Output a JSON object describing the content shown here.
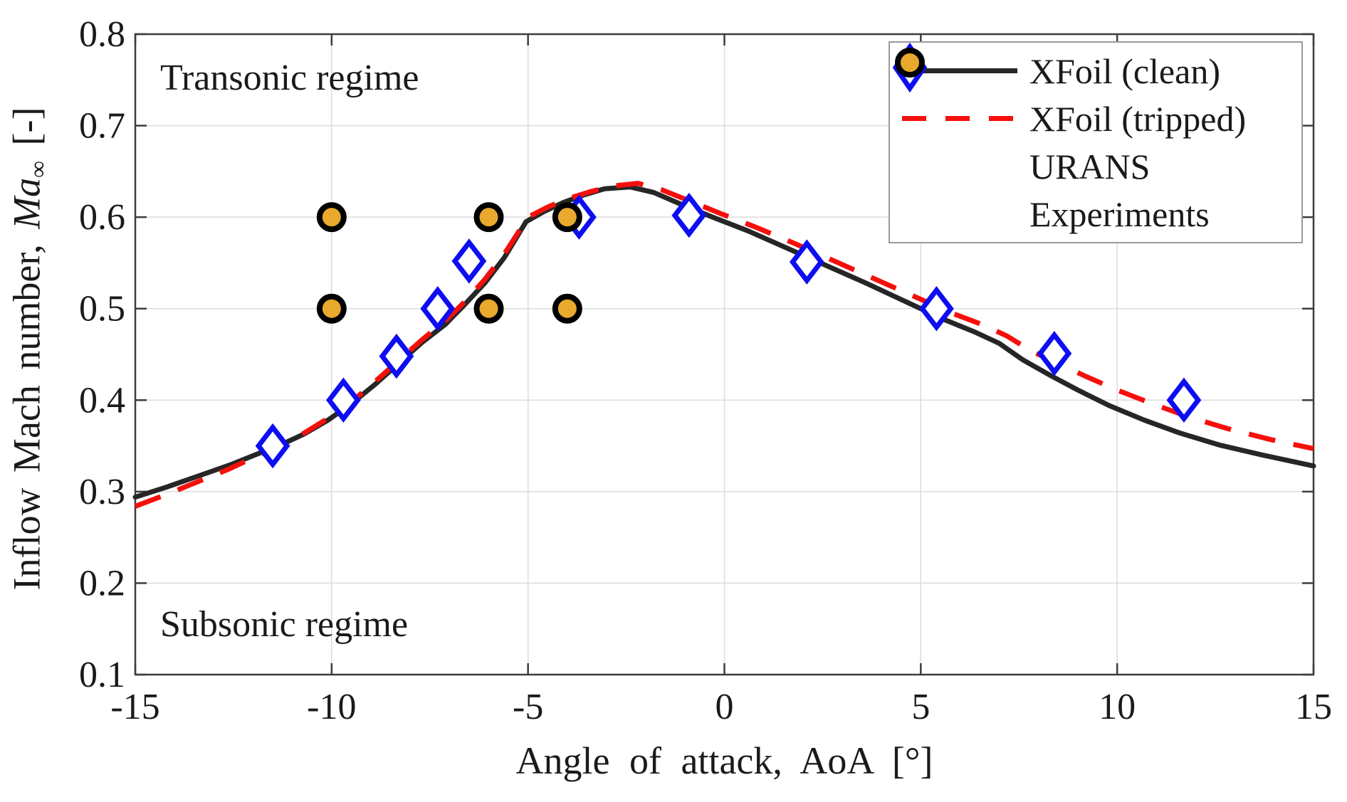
{
  "chart_data": {
    "type": "line",
    "title": "",
    "xlabel": "Angle of attack, AoA [°]",
    "ylabel": "Inflow Mach number, Ma∞ [-]",
    "ylabel_parts": {
      "prefix": "Inflow Mach number, ",
      "symbol": "Ma",
      "subscript": "∞",
      "suffix": " [-]"
    },
    "xlim": [
      -15,
      15
    ],
    "ylim": [
      0.1,
      0.8
    ],
    "xticks": [
      -15,
      -10,
      -5,
      0,
      5,
      10,
      15
    ],
    "yticks": [
      0.1,
      0.2,
      0.3,
      0.4,
      0.5,
      0.6,
      0.7,
      0.8
    ],
    "grid": true,
    "legend_position": "top-right",
    "colors": {
      "axis": "#3d3d3d",
      "grid": "#dcdcdc",
      "text": "#1a1a1a",
      "clean_line": "#262626",
      "tripped_line": "#f50f0b",
      "urans_marker": "#0d0df2",
      "experiments_fill": "#e9a92d",
      "experiments_edge": "#000000"
    },
    "annotations": [
      {
        "text": "Transonic regime",
        "x": -14.4,
        "y": 0.75
      },
      {
        "text": "Subsonic regime",
        "x": -14.4,
        "y": 0.155
      }
    ],
    "series": [
      {
        "name": "XFoil (clean)",
        "type": "line",
        "style": "solid",
        "color": "#262626",
        "width": 7,
        "points": [
          [
            -15,
            0.294
          ],
          [
            -14.2,
            0.305
          ],
          [
            -13.4,
            0.317
          ],
          [
            -12.6,
            0.329
          ],
          [
            -11.9,
            0.341
          ],
          [
            -11.3,
            0.351
          ],
          [
            -10.7,
            0.363
          ],
          [
            -10.1,
            0.378
          ],
          [
            -9.5,
            0.396
          ],
          [
            -8.9,
            0.417
          ],
          [
            -8.3,
            0.44
          ],
          [
            -7.7,
            0.463
          ],
          [
            -7.1,
            0.483
          ],
          [
            -6.6,
            0.505
          ],
          [
            -6.1,
            0.528
          ],
          [
            -5.6,
            0.556
          ],
          [
            -5.05,
            0.595
          ],
          [
            -4.6,
            0.606
          ],
          [
            -4.1,
            0.616
          ],
          [
            -3.6,
            0.624
          ],
          [
            -3.05,
            0.631
          ],
          [
            -2.4,
            0.633
          ],
          [
            -1.8,
            0.627
          ],
          [
            -1.1,
            0.614
          ],
          [
            -0.3,
            0.6
          ],
          [
            0.6,
            0.585
          ],
          [
            1.6,
            0.566
          ],
          [
            2.6,
            0.547
          ],
          [
            3.6,
            0.528
          ],
          [
            4.6,
            0.508
          ],
          [
            5.6,
            0.488
          ],
          [
            6.4,
            0.474
          ],
          [
            7.0,
            0.462
          ],
          [
            7.6,
            0.444
          ],
          [
            8.3,
            0.427
          ],
          [
            9.0,
            0.411
          ],
          [
            9.8,
            0.394
          ],
          [
            10.7,
            0.378
          ],
          [
            11.6,
            0.364
          ],
          [
            12.6,
            0.351
          ],
          [
            13.7,
            0.34
          ],
          [
            15,
            0.328
          ]
        ]
      },
      {
        "name": "XFoil (tripped)",
        "type": "line",
        "style": "dashed",
        "color": "#f50f0b",
        "width": 7,
        "points": [
          [
            -15,
            0.284
          ],
          [
            -14.2,
            0.297
          ],
          [
            -13.4,
            0.311
          ],
          [
            -12.6,
            0.325
          ],
          [
            -11.9,
            0.339
          ],
          [
            -11.3,
            0.35
          ],
          [
            -10.7,
            0.364
          ],
          [
            -10.1,
            0.38
          ],
          [
            -9.5,
            0.398
          ],
          [
            -8.9,
            0.42
          ],
          [
            -8.3,
            0.443
          ],
          [
            -7.7,
            0.466
          ],
          [
            -7.1,
            0.487
          ],
          [
            -6.6,
            0.508
          ],
          [
            -6.1,
            0.532
          ],
          [
            -5.6,
            0.56
          ],
          [
            -5.0,
            0.6
          ],
          [
            -4.5,
            0.611
          ],
          [
            -4.0,
            0.62
          ],
          [
            -3.4,
            0.628
          ],
          [
            -2.85,
            0.634
          ],
          [
            -2.2,
            0.637
          ],
          [
            -1.6,
            0.63
          ],
          [
            -0.9,
            0.618
          ],
          [
            -0.1,
            0.604
          ],
          [
            0.8,
            0.589
          ],
          [
            1.8,
            0.571
          ],
          [
            2.8,
            0.552
          ],
          [
            3.8,
            0.533
          ],
          [
            4.8,
            0.514
          ],
          [
            5.8,
            0.495
          ],
          [
            6.6,
            0.482
          ],
          [
            7.2,
            0.47
          ],
          [
            7.8,
            0.454
          ],
          [
            8.5,
            0.44
          ],
          [
            9.2,
            0.426
          ],
          [
            10.0,
            0.411
          ],
          [
            10.9,
            0.396
          ],
          [
            11.8,
            0.382
          ],
          [
            12.8,
            0.369
          ],
          [
            13.9,
            0.357
          ],
          [
            15,
            0.347
          ]
        ]
      },
      {
        "name": "URANS",
        "type": "scatter",
        "marker": "diamond",
        "color": "#0d0df2",
        "points": [
          [
            -11.5,
            0.35
          ],
          [
            -9.7,
            0.4
          ],
          [
            -8.35,
            0.448
          ],
          [
            -7.3,
            0.5
          ],
          [
            -6.5,
            0.552
          ],
          [
            -3.7,
            0.6
          ],
          [
            -0.9,
            0.602
          ],
          [
            2.1,
            0.551
          ],
          [
            5.4,
            0.5
          ],
          [
            8.4,
            0.451
          ],
          [
            11.7,
            0.4
          ]
        ]
      },
      {
        "name": "Experiments",
        "type": "scatter",
        "marker": "circle",
        "color": "#e9a92d",
        "edge": "#000000",
        "points": [
          [
            -10,
            0.6
          ],
          [
            -10,
            0.5
          ],
          [
            -6,
            0.6
          ],
          [
            -6,
            0.5
          ],
          [
            -4,
            0.6
          ],
          [
            -4,
            0.5
          ]
        ]
      }
    ]
  }
}
